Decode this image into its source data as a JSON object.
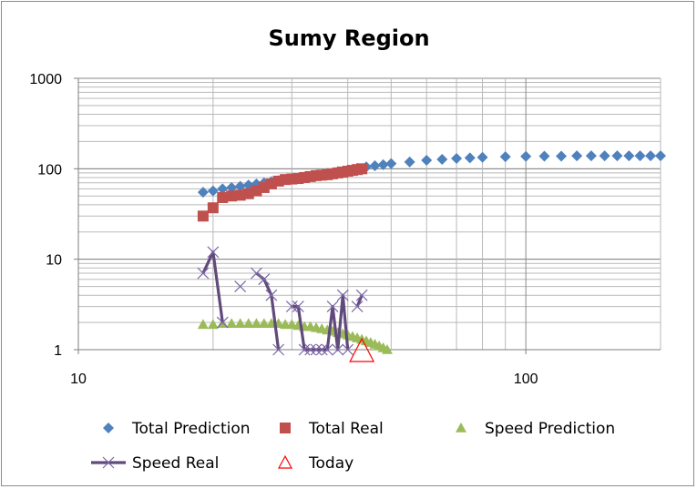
{
  "chart_data": {
    "type": "scatter",
    "title": "Sumy Region",
    "x_scale": "log",
    "y_scale": "log",
    "xlim": [
      10,
      200
    ],
    "ylim": [
      1,
      1000
    ],
    "x_ticks": [
      "10",
      "100"
    ],
    "y_ticks": [
      "1",
      "10",
      "100",
      "1000"
    ],
    "grid": true,
    "legend_position": "bottom",
    "series": [
      {
        "name": "Total Prediction",
        "color": "#4f81bd",
        "marker": "diamond",
        "x": [
          19,
          20,
          21,
          22,
          23,
          24,
          25,
          26,
          27,
          28,
          29,
          30,
          32,
          34,
          36,
          38,
          40,
          42,
          44,
          46,
          48,
          50,
          55,
          60,
          65,
          70,
          75,
          80,
          90,
          100,
          110,
          120,
          130,
          140,
          150,
          160,
          170,
          180,
          190,
          200
        ],
        "y": [
          55,
          57,
          60,
          62,
          64,
          66,
          68,
          70,
          72,
          74,
          76,
          78,
          81,
          85,
          89,
          93,
          97,
          101,
          105,
          108,
          111,
          114,
          119,
          124,
          127,
          130,
          132,
          134,
          136,
          137,
          138,
          138,
          139,
          139,
          139,
          139,
          139,
          139,
          139,
          139
        ]
      },
      {
        "name": "Total Real",
        "color": "#c0504d",
        "marker": "square",
        "x": [
          19,
          20,
          21,
          22,
          23,
          24,
          25,
          26,
          27,
          28,
          29,
          30,
          31,
          32,
          33,
          34,
          35,
          36,
          37,
          38,
          39,
          40,
          41,
          42,
          43
        ],
        "y": [
          30,
          37,
          48,
          50,
          51,
          53,
          57,
          62,
          68,
          73,
          76,
          77,
          78,
          80,
          82,
          84,
          85,
          86,
          88,
          90,
          92,
          94,
          96,
          98,
          100
        ]
      },
      {
        "name": "Speed Prediction",
        "color": "#9bbb59",
        "marker": "triangle",
        "x": [
          19,
          20,
          21,
          22,
          23,
          24,
          25,
          26,
          27,
          28,
          29,
          30,
          31,
          32,
          33,
          34,
          35,
          36,
          37,
          38,
          39,
          40,
          41,
          42,
          43,
          44,
          45,
          46,
          47,
          48,
          49
        ],
        "y": [
          1.9,
          1.9,
          1.95,
          1.95,
          1.95,
          1.95,
          1.95,
          1.95,
          1.95,
          1.95,
          1.9,
          1.9,
          1.85,
          1.8,
          1.8,
          1.75,
          1.7,
          1.65,
          1.6,
          1.55,
          1.5,
          1.45,
          1.4,
          1.35,
          1.3,
          1.25,
          1.2,
          1.15,
          1.1,
          1.05,
          1.0
        ]
      },
      {
        "name": "Speed Real",
        "color": "#604a7b",
        "marker": "x-line",
        "x": [
          19,
          20,
          21,
          22,
          23,
          24,
          25,
          26,
          27,
          28,
          29,
          30,
          31,
          32,
          33,
          34,
          35,
          36,
          37,
          38,
          39,
          40,
          41,
          42,
          43
        ],
        "y": [
          7,
          12,
          2,
          null,
          5,
          null,
          7,
          6,
          4,
          1,
          null,
          3,
          3,
          1,
          1,
          1,
          1,
          1,
          3,
          1,
          4,
          1,
          null,
          3,
          4
        ]
      },
      {
        "name": "Today",
        "color": "#ff0000",
        "marker": "open-triangle",
        "x": [
          43
        ],
        "y": [
          1
        ]
      }
    ]
  }
}
